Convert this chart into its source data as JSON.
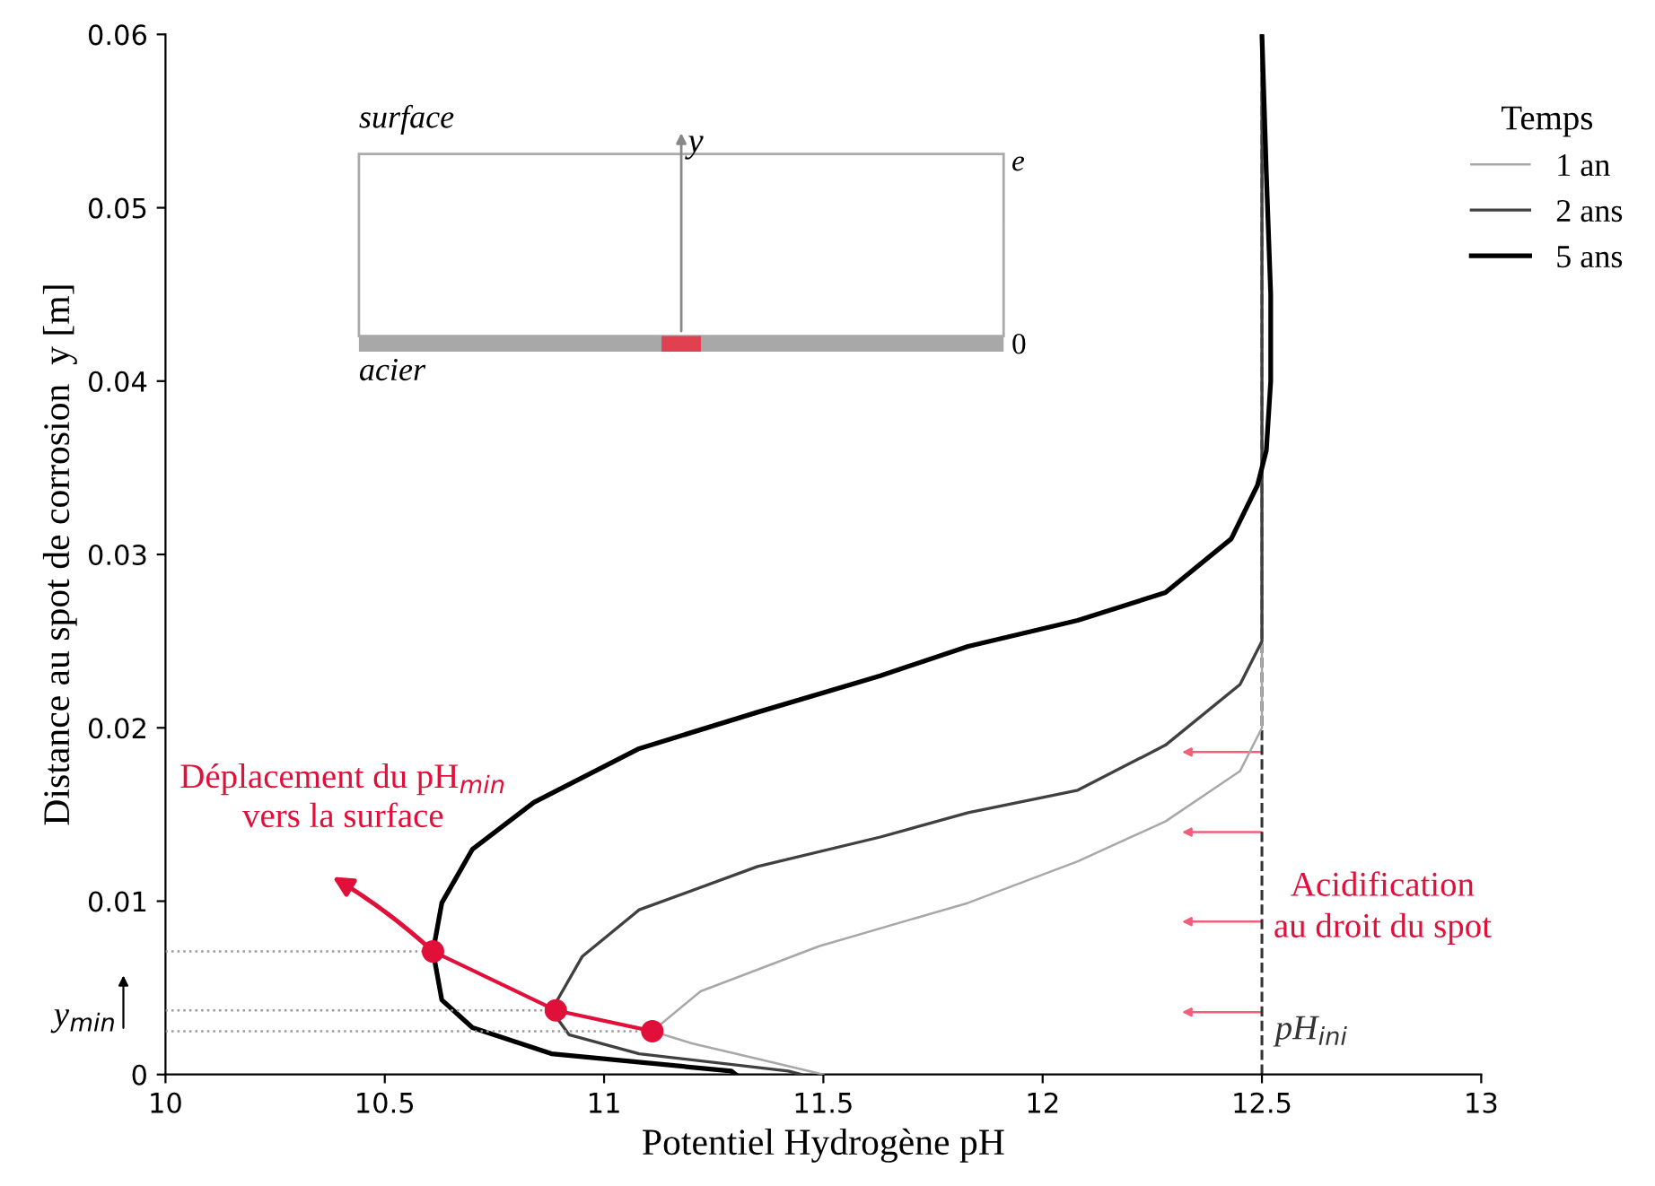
{
  "chart_data": {
    "type": "line",
    "xlabel": "Potentiel Hydrogène pH",
    "ylabel": "Distance au spot de corrosion  y [m]",
    "legend_title": "Temps",
    "legend": "top right",
    "xlim": [
      10,
      13
    ],
    "xticks": [
      10,
      10.5,
      11,
      11.5,
      12,
      12.5,
      13
    ],
    "ylim": [
      0,
      0.06
    ],
    "yticks": [
      0,
      0.01,
      0.02,
      0.03,
      0.04,
      0.05,
      0.06
    ],
    "grid": false,
    "series": [
      {
        "name": "1 an",
        "color": "#a8a8a8",
        "x": [
          11.5,
          11.35,
          11.2,
          11.11,
          11.22,
          11.49,
          11.83,
          12.08,
          12.28,
          12.45,
          12.5,
          12.5,
          12.5
        ],
        "values": [
          0,
          0.0009,
          0.0018,
          0.0025,
          0.0048,
          0.0074,
          0.0099,
          0.0123,
          0.0146,
          0.0175,
          0.02,
          0.04,
          0.06
        ]
      },
      {
        "name": "2 ans",
        "color": "#404040",
        "x": [
          11.45,
          11.42,
          11.08,
          10.92,
          10.88,
          10.95,
          11.08,
          11.35,
          11.63,
          11.83,
          12.08,
          12.28,
          12.45,
          12.5,
          12.5,
          12.5
        ],
        "values": [
          0,
          0.0002,
          0.0012,
          0.0023,
          0.0037,
          0.0068,
          0.0095,
          0.012,
          0.0137,
          0.0151,
          0.0164,
          0.019,
          0.0225,
          0.025,
          0.04,
          0.06
        ]
      },
      {
        "name": "5 ans",
        "color": "#000000",
        "x": [
          11.3,
          11.29,
          10.88,
          10.7,
          10.63,
          10.61,
          10.63,
          10.7,
          10.84,
          11.08,
          11.35,
          11.63,
          11.83,
          12.08,
          12.28,
          12.43,
          12.49,
          12.51,
          12.52,
          12.52,
          12.51,
          12.5
        ],
        "values": [
          0,
          0.0002,
          0.0012,
          0.0027,
          0.0043,
          0.0071,
          0.0099,
          0.013,
          0.0157,
          0.0188,
          0.0209,
          0.023,
          0.0247,
          0.0262,
          0.0278,
          0.0309,
          0.034,
          0.036,
          0.04,
          0.045,
          0.052,
          0.06
        ]
      },
      {
        "color": "#e0103a",
        "marker": "circle",
        "x": [
          11.11,
          10.89,
          10.61
        ],
        "values": [
          0.0025,
          0.0037,
          0.0071
        ]
      },
      {
        "color": "#9a9a9a",
        "line_style": "dotted",
        "x": [
          10,
          11.11
        ],
        "values": [
          0.0025,
          0.0025
        ]
      },
      {
        "color": "#9a9a9a",
        "line_style": "dotted",
        "x": [
          10,
          10.89
        ],
        "values": [
          0.0037,
          0.0037
        ]
      },
      {
        "color": "#9a9a9a",
        "line_style": "dotted",
        "x": [
          10,
          10.61
        ],
        "values": [
          0.0071,
          0.0071
        ]
      }
    ],
    "ref_lines": [
      {
        "axis": "x",
        "value": 12.5,
        "label": "pH$_{ini}$",
        "color": "#333333",
        "line_style": "dashed"
      }
    ],
    "annotations": [
      "Déplacement du pH$_{min}$\nvers la surface",
      "Acidification\nau droit du spot",
      "y$_{min}$",
      "surface",
      "y",
      "e",
      "0",
      "acier"
    ]
  }
}
